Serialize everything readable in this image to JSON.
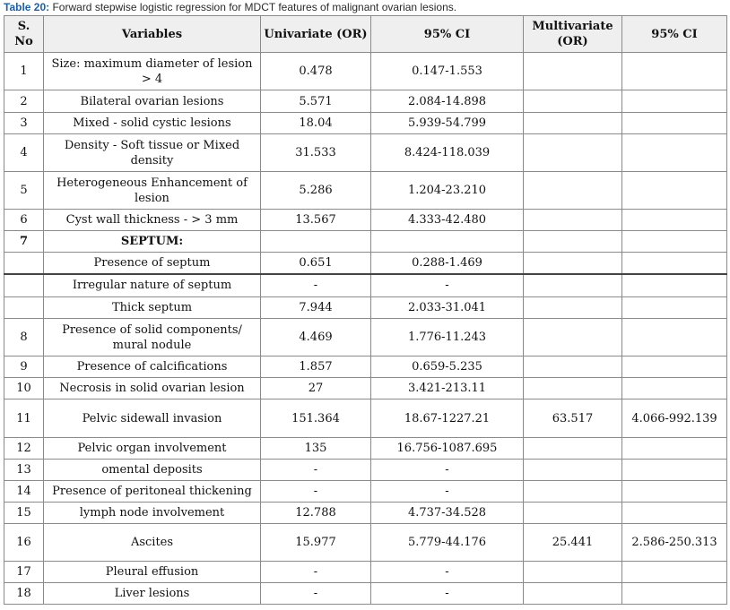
{
  "caption": {
    "label": "Table 20:",
    "text": " Forward stepwise logistic regression for MDCT features of malignant ovarian lesions."
  },
  "headers": {
    "sno": "S. No",
    "variables": "Variables",
    "univariate": "Univariate (OR)",
    "ci1": "95% CI",
    "multivariate": "Multivariate (OR)",
    "ci2": "95% CI"
  },
  "rows": [
    {
      "sno": "1",
      "variable": "Size: maximum diameter of lesion > 4",
      "uni": "0.478",
      "ci1": "0.147-1.553",
      "multi": "",
      "ci2": ""
    },
    {
      "sno": "2",
      "variable": "Bilateral ovarian lesions",
      "uni": "5.571",
      "ci1": "2.084-14.898",
      "multi": "",
      "ci2": ""
    },
    {
      "sno": "3",
      "variable": "Mixed - solid cystic lesions",
      "uni": "18.04",
      "ci1": "5.939-54.799",
      "multi": "",
      "ci2": ""
    },
    {
      "sno": "4",
      "variable": "Density - Soft tissue or Mixed density",
      "uni": "31.533",
      "ci1": "8.424-118.039",
      "multi": "",
      "ci2": ""
    },
    {
      "sno": "5",
      "variable": "Heterogeneous Enhancement of lesion",
      "uni": "5.286",
      "ci1": "1.204-23.210",
      "multi": "",
      "ci2": ""
    },
    {
      "sno": "6",
      "variable": "Cyst wall thickness - > 3 mm",
      "uni": "13.567",
      "ci1": "4.333-42.480",
      "multi": "",
      "ci2": ""
    },
    {
      "sno": "7",
      "variable": "SEPTUM:",
      "uni": "",
      "ci1": "",
      "multi": "",
      "ci2": ""
    },
    {
      "sno": "",
      "variable": "Presence of septum",
      "uni": "0.651",
      "ci1": "0.288-1.469",
      "multi": "",
      "ci2": ""
    },
    {
      "sno": "",
      "variable": "Irregular nature of septum",
      "uni": "-",
      "ci1": "-",
      "multi": "",
      "ci2": ""
    },
    {
      "sno": "",
      "variable": "Thick septum",
      "uni": "7.944",
      "ci1": "2.033-31.041",
      "multi": "",
      "ci2": ""
    },
    {
      "sno": "8",
      "variable": "Presence of solid components/ mural nodule",
      "uni": "4.469",
      "ci1": "1.776-11.243",
      "multi": "",
      "ci2": ""
    },
    {
      "sno": "9",
      "variable": "Presence of calcifications",
      "uni": "1.857",
      "ci1": "0.659-5.235",
      "multi": "",
      "ci2": ""
    },
    {
      "sno": "10",
      "variable": "Necrosis in solid ovarian lesion",
      "uni": "27",
      "ci1": "3.421-213.11",
      "multi": "",
      "ci2": ""
    },
    {
      "sno": "11",
      "variable": "Pelvic sidewall invasion",
      "uni": "151.364",
      "ci1": "18.67-1227.21",
      "multi": "63.517",
      "ci2": "4.066-992.139"
    },
    {
      "sno": "12",
      "variable": "Pelvic organ involvement",
      "uni": "135",
      "ci1": "16.756-1087.695",
      "multi": "",
      "ci2": ""
    },
    {
      "sno": "13",
      "variable": "omental deposits",
      "uni": "-",
      "ci1": "-",
      "multi": "",
      "ci2": ""
    },
    {
      "sno": "14",
      "variable": "Presence of peritoneal thickening",
      "uni": "-",
      "ci1": "-",
      "multi": "",
      "ci2": ""
    },
    {
      "sno": "15",
      "variable": "lymph node involvement",
      "uni": "12.788",
      "ci1": "4.737-34.528",
      "multi": "",
      "ci2": ""
    },
    {
      "sno": "16",
      "variable": "Ascites",
      "uni": "15.977",
      "ci1": "5.779-44.176",
      "multi": "25.441",
      "ci2": "2.586-250.313"
    },
    {
      "sno": "17",
      "variable": "Pleural effusion",
      "uni": "-",
      "ci1": "-",
      "multi": "",
      "ci2": ""
    },
    {
      "sno": "18",
      "variable": "Liver lesions",
      "uni": "-",
      "ci1": "-",
      "multi": "",
      "ci2": ""
    }
  ]
}
